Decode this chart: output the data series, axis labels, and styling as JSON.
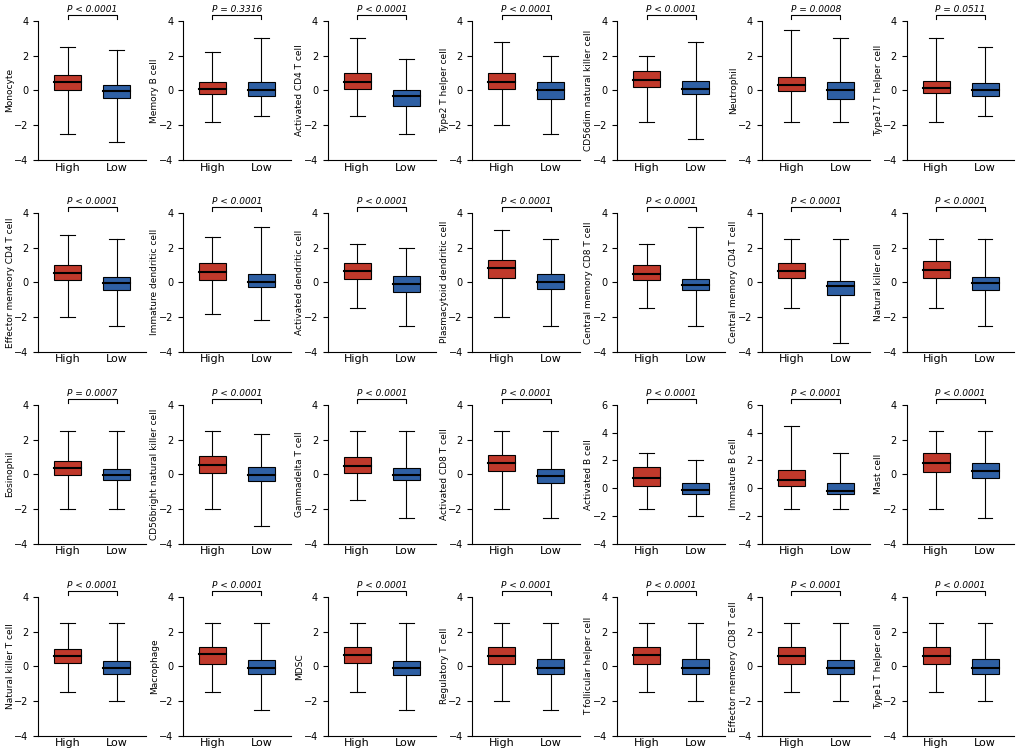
{
  "panels": [
    {
      "title": "Monocyte",
      "pval": "P < 0.0001",
      "high_q1": 0.0,
      "high_med": 0.45,
      "high_q3": 0.9,
      "high_min": -2.5,
      "high_max": 2.5,
      "low_q1": -0.45,
      "low_med": -0.05,
      "low_q3": 0.3,
      "low_min": -3.0,
      "low_max": 2.3,
      "ylim": [
        -4,
        4
      ]
    },
    {
      "title": "Memory B cell",
      "pval": "P = 0.3316",
      "high_q1": -0.2,
      "high_med": 0.1,
      "high_q3": 0.5,
      "high_min": -1.8,
      "high_max": 2.2,
      "low_q1": -0.35,
      "low_med": 0.0,
      "low_q3": 0.5,
      "low_min": -1.5,
      "low_max": 3.0,
      "ylim": [
        -4,
        4
      ]
    },
    {
      "title": "Activated CD4 T cell",
      "pval": "P < 0.0001",
      "high_q1": 0.1,
      "high_med": 0.5,
      "high_q3": 1.0,
      "high_min": -1.5,
      "high_max": 3.0,
      "low_q1": -0.9,
      "low_med": -0.35,
      "low_q3": 0.0,
      "low_min": -2.5,
      "low_max": 1.8,
      "ylim": [
        -4,
        4
      ]
    },
    {
      "title": "Type2 T helper cell",
      "pval": "P < 0.0001",
      "high_q1": 0.1,
      "high_med": 0.5,
      "high_q3": 1.0,
      "high_min": -2.0,
      "high_max": 2.8,
      "low_q1": -0.5,
      "low_med": 0.0,
      "low_q3": 0.5,
      "low_min": -2.5,
      "low_max": 2.0,
      "ylim": [
        -4,
        4
      ]
    },
    {
      "title": "CD56dim natural killer cell",
      "pval": "P < 0.0001",
      "high_q1": 0.2,
      "high_med": 0.6,
      "high_q3": 1.1,
      "high_min": -1.8,
      "high_max": 2.0,
      "low_q1": -0.2,
      "low_med": 0.05,
      "low_q3": 0.55,
      "low_min": -2.8,
      "low_max": 2.8,
      "ylim": [
        -4,
        4
      ]
    },
    {
      "title": "Neutrophil",
      "pval": "P = 0.0008",
      "high_q1": -0.05,
      "high_med": 0.3,
      "high_q3": 0.75,
      "high_min": -1.8,
      "high_max": 3.5,
      "low_q1": -0.5,
      "low_med": 0.0,
      "low_q3": 0.5,
      "low_min": -1.8,
      "low_max": 3.0,
      "ylim": [
        -4,
        4
      ]
    },
    {
      "title": "Type17 T helper cell",
      "pval": "P = 0.0511",
      "high_q1": -0.15,
      "high_med": 0.15,
      "high_q3": 0.55,
      "high_min": -1.8,
      "high_max": 3.0,
      "low_q1": -0.3,
      "low_med": 0.0,
      "low_q3": 0.4,
      "low_min": -1.5,
      "low_max": 2.5,
      "ylim": [
        -4,
        4
      ]
    },
    {
      "title": "Effector memeory CD4 T cell",
      "pval": "P < 0.0001",
      "high_q1": 0.15,
      "high_med": 0.55,
      "high_q3": 1.0,
      "high_min": -2.0,
      "high_max": 2.7,
      "low_q1": -0.45,
      "low_med": -0.05,
      "low_q3": 0.3,
      "low_min": -2.5,
      "low_max": 2.5,
      "ylim": [
        -4,
        4
      ]
    },
    {
      "title": "Immature dendritic cell",
      "pval": "P < 0.0001",
      "high_q1": 0.15,
      "high_med": 0.6,
      "high_q3": 1.1,
      "high_min": -1.8,
      "high_max": 2.6,
      "low_q1": -0.25,
      "low_med": 0.0,
      "low_q3": 0.5,
      "low_min": -2.2,
      "low_max": 3.2,
      "ylim": [
        -4,
        4
      ]
    },
    {
      "title": "Activated dendritic cell",
      "pval": "P < 0.0001",
      "high_q1": 0.2,
      "high_med": 0.65,
      "high_q3": 1.1,
      "high_min": -1.5,
      "high_max": 2.2,
      "low_q1": -0.55,
      "low_med": -0.1,
      "low_q3": 0.35,
      "low_min": -2.5,
      "low_max": 2.0,
      "ylim": [
        -4,
        4
      ]
    },
    {
      "title": "Plasmacytoid dendritic cell",
      "pval": "P < 0.0001",
      "high_q1": 0.25,
      "high_med": 0.8,
      "high_q3": 1.3,
      "high_min": -2.0,
      "high_max": 3.0,
      "low_q1": -0.4,
      "low_med": 0.0,
      "low_q3": 0.5,
      "low_min": -2.5,
      "low_max": 2.5,
      "ylim": [
        -4,
        4
      ]
    },
    {
      "title": "Central memory CD8 T cell",
      "pval": "P < 0.0001",
      "high_q1": 0.15,
      "high_med": 0.5,
      "high_q3": 1.0,
      "high_min": -1.5,
      "high_max": 2.2,
      "low_q1": -0.45,
      "low_med": -0.15,
      "low_q3": 0.2,
      "low_min": -2.5,
      "low_max": 3.2,
      "ylim": [
        -4,
        4
      ]
    },
    {
      "title": "Central memory CD4 T cell",
      "pval": "P < 0.0001",
      "high_q1": 0.25,
      "high_med": 0.65,
      "high_q3": 1.1,
      "high_min": -1.5,
      "high_max": 2.5,
      "low_q1": -0.75,
      "low_med": -0.2,
      "low_q3": 0.1,
      "low_min": -3.5,
      "low_max": 2.5,
      "ylim": [
        -4,
        4
      ]
    },
    {
      "title": "Natural killer cell",
      "pval": "P < 0.0001",
      "high_q1": 0.25,
      "high_med": 0.7,
      "high_q3": 1.2,
      "high_min": -1.5,
      "high_max": 2.5,
      "low_q1": -0.45,
      "low_med": -0.05,
      "low_q3": 0.3,
      "low_min": -2.5,
      "low_max": 2.5,
      "ylim": [
        -4,
        4
      ]
    },
    {
      "title": "Eosinophil",
      "pval": "P = 0.0007",
      "high_q1": -0.05,
      "high_med": 0.35,
      "high_q3": 0.75,
      "high_min": -2.0,
      "high_max": 2.5,
      "low_q1": -0.35,
      "low_med": -0.05,
      "low_q3": 0.3,
      "low_min": -2.0,
      "low_max": 2.5,
      "ylim": [
        -4,
        4
      ]
    },
    {
      "title": "CD56bright natural killer cell",
      "pval": "P < 0.0001",
      "high_q1": 0.05,
      "high_med": 0.55,
      "high_q3": 1.05,
      "high_min": -2.0,
      "high_max": 2.5,
      "low_q1": -0.4,
      "low_med": -0.05,
      "low_q3": 0.4,
      "low_min": -3.0,
      "low_max": 2.3,
      "ylim": [
        -4,
        4
      ]
    },
    {
      "title": "Gammadelta T cell",
      "pval": "P < 0.0001",
      "high_q1": 0.05,
      "high_med": 0.45,
      "high_q3": 1.0,
      "high_min": -1.5,
      "high_max": 2.5,
      "low_q1": -0.35,
      "low_med": -0.05,
      "low_q3": 0.35,
      "low_min": -2.5,
      "low_max": 2.5,
      "ylim": [
        -4,
        4
      ]
    },
    {
      "title": "Activated CD8 T cell",
      "pval": "P < 0.0001",
      "high_q1": 0.2,
      "high_med": 0.65,
      "high_q3": 1.1,
      "high_min": -2.0,
      "high_max": 2.5,
      "low_q1": -0.5,
      "low_med": -0.1,
      "low_q3": 0.3,
      "low_min": -2.5,
      "low_max": 2.5,
      "ylim": [
        -4,
        4
      ]
    },
    {
      "title": "Activated B cell",
      "pval": "P < 0.0001",
      "high_q1": 0.15,
      "high_med": 0.75,
      "high_q3": 1.5,
      "high_min": -1.5,
      "high_max": 2.5,
      "low_q1": -0.4,
      "low_med": -0.1,
      "low_q3": 0.4,
      "low_min": -2.0,
      "low_max": 2.0,
      "ylim": [
        -4,
        6
      ]
    },
    {
      "title": "Immature B cell",
      "pval": "P < 0.0001",
      "high_q1": 0.15,
      "high_med": 0.6,
      "high_q3": 1.3,
      "high_min": -1.5,
      "high_max": 4.5,
      "low_q1": -0.4,
      "low_med": -0.2,
      "low_q3": 0.35,
      "low_min": -1.5,
      "low_max": 2.5,
      "ylim": [
        -4,
        6
      ]
    },
    {
      "title": "Mast cell",
      "pval": "P < 0.0001",
      "high_q1": 0.15,
      "high_med": 0.65,
      "high_q3": 1.2,
      "high_min": -2.0,
      "high_max": 2.5,
      "low_q1": -0.2,
      "low_med": 0.2,
      "low_q3": 0.65,
      "low_min": -2.5,
      "low_max": 2.5,
      "ylim": [
        -4,
        4
      ]
    },
    {
      "title": "Natural killer T cell",
      "pval": "P < 0.0001",
      "high_q1": 0.2,
      "high_med": 0.6,
      "high_q3": 1.0,
      "high_min": -1.5,
      "high_max": 2.5,
      "low_q1": -0.45,
      "low_med": -0.1,
      "low_q3": 0.3,
      "low_min": -2.0,
      "low_max": 2.5,
      "ylim": [
        -4,
        4
      ]
    },
    {
      "title": "Macrophage",
      "pval": "P < 0.0001",
      "high_q1": 0.15,
      "high_med": 0.7,
      "high_q3": 1.1,
      "high_min": -1.5,
      "high_max": 2.5,
      "low_q1": -0.45,
      "low_med": -0.1,
      "low_q3": 0.35,
      "low_min": -2.5,
      "low_max": 2.5,
      "ylim": [
        -4,
        4
      ]
    },
    {
      "title": "MDSC",
      "pval": "P < 0.0001",
      "high_q1": 0.2,
      "high_med": 0.65,
      "high_q3": 1.1,
      "high_min": -1.5,
      "high_max": 2.5,
      "low_q1": -0.5,
      "low_med": -0.1,
      "low_q3": 0.3,
      "low_min": -2.5,
      "low_max": 2.5,
      "ylim": [
        -4,
        4
      ]
    },
    {
      "title": "Regulatory T cell",
      "pval": "P < 0.0001",
      "high_q1": 0.15,
      "high_med": 0.6,
      "high_q3": 1.1,
      "high_min": -2.0,
      "high_max": 2.5,
      "low_q1": -0.45,
      "low_med": -0.1,
      "low_q3": 0.4,
      "low_min": -2.5,
      "low_max": 2.5,
      "ylim": [
        -4,
        4
      ]
    },
    {
      "title": "T follicular helper cell",
      "pval": "P < 0.0001",
      "high_q1": 0.15,
      "high_med": 0.65,
      "high_q3": 1.1,
      "high_min": -1.5,
      "high_max": 2.5,
      "low_q1": -0.45,
      "low_med": -0.1,
      "low_q3": 0.4,
      "low_min": -2.0,
      "low_max": 2.5,
      "ylim": [
        -4,
        4
      ]
    },
    {
      "title": "Effector memeory CD8 T cell",
      "pval": "P < 0.0001",
      "high_q1": 0.15,
      "high_med": 0.6,
      "high_q3": 1.1,
      "high_min": -1.5,
      "high_max": 2.5,
      "low_q1": -0.45,
      "low_med": -0.1,
      "low_q3": 0.35,
      "low_min": -2.0,
      "low_max": 2.5,
      "ylim": [
        -4,
        4
      ]
    },
    {
      "title": "Type1 T helper cell",
      "pval": "P < 0.0001",
      "high_q1": 0.15,
      "high_med": 0.6,
      "high_q3": 1.1,
      "high_min": -1.5,
      "high_max": 2.5,
      "low_q1": -0.45,
      "low_med": -0.1,
      "low_q3": 0.4,
      "low_min": -2.0,
      "low_max": 2.5,
      "ylim": [
        -4,
        4
      ]
    }
  ],
  "high_color": "#C0392B",
  "low_color": "#2E5FA3",
  "bg_color": "#FFFFFF",
  "n_cols": 7,
  "n_rows": 4,
  "figsize": [
    10.2,
    7.54
  ]
}
